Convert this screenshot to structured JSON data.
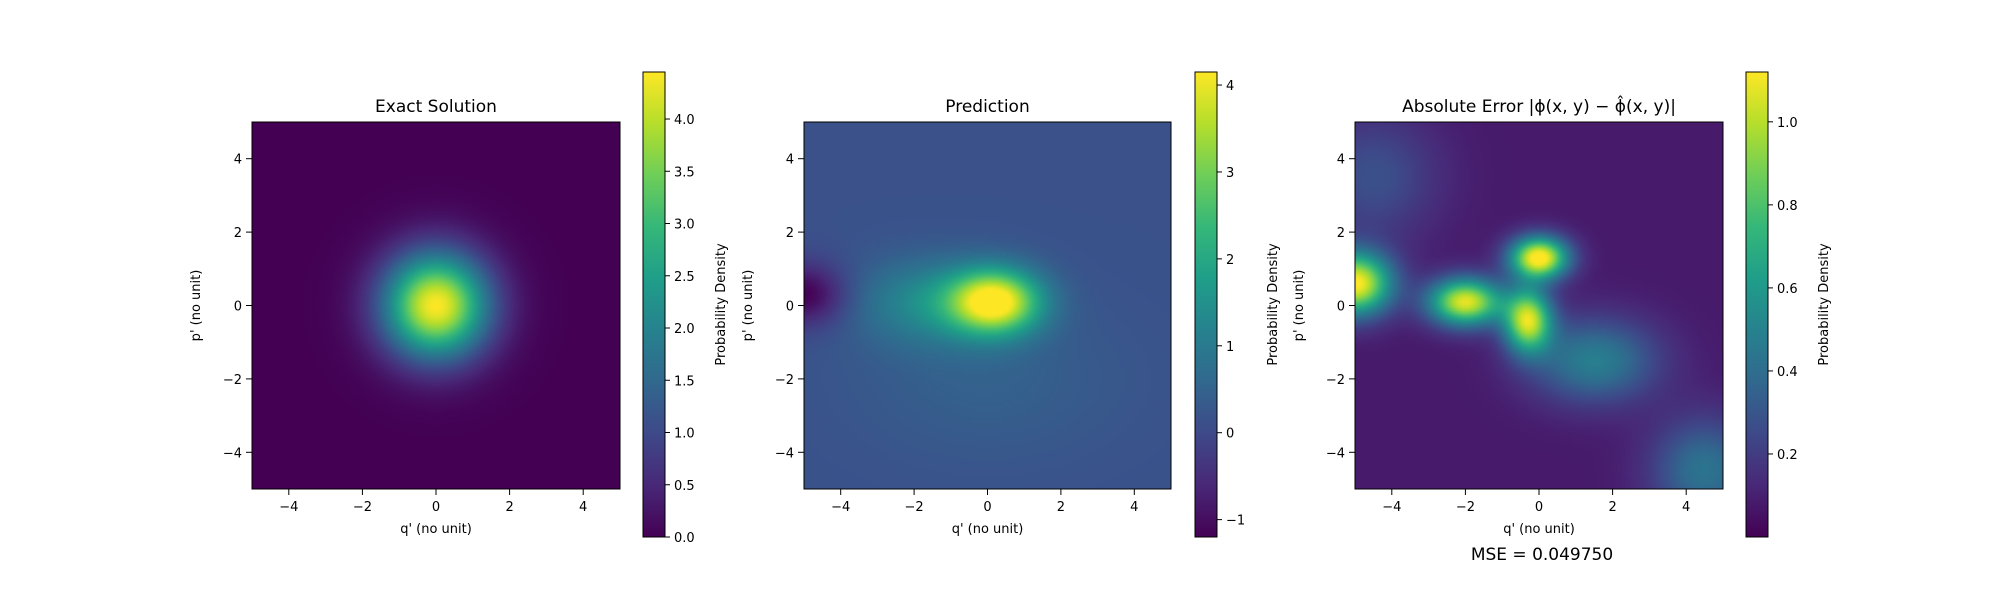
{
  "colorbar_label": "Probability Density",
  "mse_text": "MSE = 0.049750",
  "colormap": [
    "#440154",
    "#482878",
    "#3e4989",
    "#31688e",
    "#26828e",
    "#1f9e89",
    "#35b779",
    "#6ece58",
    "#b5de2b",
    "#fde725"
  ],
  "chart_data": [
    {
      "type": "heatmap",
      "title": "Exact Solution",
      "xlabel": "q' (no unit)",
      "ylabel": "p' (no unit)",
      "xlim": [
        -5,
        5
      ],
      "ylim": [
        -5,
        5
      ],
      "xticks": [
        -4,
        -2,
        0,
        2,
        4
      ],
      "yticks": [
        -4,
        -2,
        0,
        2,
        4
      ],
      "colorbar": {
        "label": "Probability Density",
        "range": [
          0,
          4.45
        ],
        "ticks": [
          "0.0",
          "0.5",
          "1.0",
          "1.5",
          "2.0",
          "2.5",
          "3.0",
          "3.5",
          "4.0"
        ]
      },
      "field": {
        "base": 0.0,
        "blobs": [
          {
            "x": 0,
            "y": 0,
            "amp": 4.45,
            "sx": 1.0,
            "sy": 1.0
          }
        ]
      }
    },
    {
      "type": "heatmap",
      "title": "Prediction",
      "xlabel": "q' (no unit)",
      "ylabel": "p' (no unit)",
      "xlim": [
        -5,
        5
      ],
      "ylim": [
        -5,
        5
      ],
      "xticks": [
        -4,
        -2,
        0,
        2,
        4
      ],
      "yticks": [
        -4,
        -2,
        0,
        2,
        4
      ],
      "colorbar": {
        "label": "Probability Density",
        "range": [
          -1.2,
          4.15
        ],
        "ticks": [
          "−1",
          "0",
          "1",
          "2",
          "3",
          "4"
        ]
      },
      "field": {
        "base": 0.15,
        "blobs": [
          {
            "x": 0.2,
            "y": 0.1,
            "amp": 4.0,
            "sx": 0.85,
            "sy": 0.6
          },
          {
            "x": -1.5,
            "y": 0.1,
            "amp": 1.2,
            "sx": 1.4,
            "sy": 0.8
          },
          {
            "x": -5,
            "y": 0.3,
            "amp": -1.4,
            "sx": 0.8,
            "sy": 0.6
          },
          {
            "x": 0,
            "y": -2.0,
            "amp": 0.3,
            "sx": 2.5,
            "sy": 1.5
          }
        ]
      }
    },
    {
      "type": "heatmap",
      "title": "Absolute Error |ϕ(x, y) − ϕ̂(x, y)|",
      "xlabel": "q' (no unit)",
      "ylabel": "p' (no unit)",
      "xlim": [
        -5,
        5
      ],
      "ylim": [
        -5,
        5
      ],
      "xticks": [
        -4,
        -2,
        0,
        2,
        4
      ],
      "yticks": [
        -4,
        -2,
        0,
        2,
        4
      ],
      "colorbar": {
        "label": "Probability Density",
        "range": [
          0,
          1.12
        ],
        "ticks": [
          "0.2",
          "0.4",
          "0.6",
          "0.8",
          "1.0"
        ]
      },
      "field": {
        "base": 0.08,
        "blobs": [
          {
            "x": -5,
            "y": 0.6,
            "amp": 1.05,
            "sx": 0.7,
            "sy": 0.6
          },
          {
            "x": -2.0,
            "y": 0.1,
            "amp": 1.0,
            "sx": 0.7,
            "sy": 0.45
          },
          {
            "x": 0.0,
            "y": 1.3,
            "amp": 1.1,
            "sx": 0.55,
            "sy": 0.4
          },
          {
            "x": -0.3,
            "y": -0.4,
            "amp": 0.95,
            "sx": 0.45,
            "sy": 0.6
          },
          {
            "x": 1.5,
            "y": -1.5,
            "amp": 0.4,
            "sx": 1.2,
            "sy": 0.8
          },
          {
            "x": 4.5,
            "y": -4.5,
            "amp": 0.35,
            "sx": 1.0,
            "sy": 1.0
          },
          {
            "x": -4.5,
            "y": 3.5,
            "amp": 0.2,
            "sx": 1.2,
            "sy": 1.2
          }
        ]
      }
    }
  ]
}
